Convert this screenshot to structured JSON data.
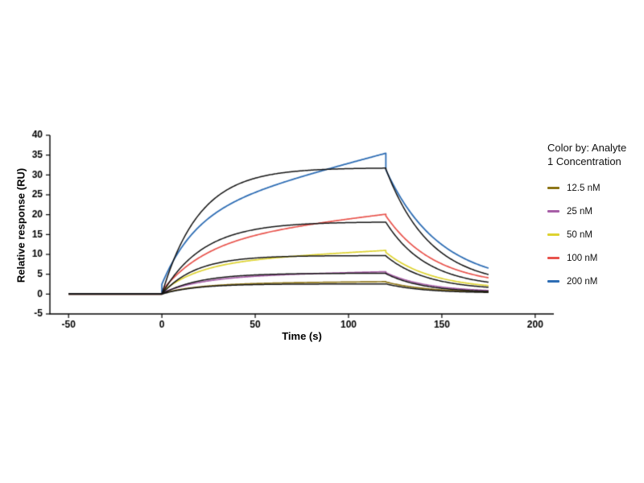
{
  "page": {
    "background": "#ffffff"
  },
  "chart_data": {
    "type": "line",
    "title": "",
    "xlabel": "Time (s)",
    "ylabel": "Relative response (RU)",
    "xlim": [
      -60,
      210
    ],
    "ylim": [
      -5,
      40
    ],
    "xticks": [
      -50,
      0,
      50,
      100,
      150,
      200
    ],
    "yticks": [
      -5,
      0,
      5,
      10,
      15,
      20,
      25,
      30,
      35,
      40
    ],
    "grid": false,
    "axis_color": "#000000",
    "fit_color": "#141414",
    "legend": {
      "title_lines": [
        "Color by: Analyte",
        "1 Concentration"
      ],
      "position": "right",
      "items": [
        {
          "label": "12.5 nM",
          "color": "#8e7618"
        },
        {
          "label": "25 nM",
          "color": "#a75fa7"
        },
        {
          "label": "50 nM",
          "color": "#ddd230"
        },
        {
          "label": "100 nM",
          "color": "#e8534c"
        },
        {
          "label": "200 nM",
          "color": "#2e6db4"
        }
      ]
    },
    "phases": {
      "baseline_start": -50,
      "association_start": 0,
      "dissociation_start": 120,
      "end": 175,
      "baseline_ru": 0
    },
    "series": [
      {
        "name": "12.5 nM",
        "role": "data",
        "color": "#8e7618",
        "width": 1.7,
        "assoc": {
          "jump": 0.15,
          "amp": 2.5,
          "k": 0.05,
          "drift": 0.004
        },
        "dissoc": {
          "amp": 2.7,
          "k": 0.045,
          "offset": 0.35
        },
        "peak_ru": 3.1,
        "end_ru": 0.6
      },
      {
        "name": "25 nM",
        "role": "data",
        "color": "#a75fa7",
        "width": 1.7,
        "assoc": {
          "jump": 0.3,
          "amp": 4.1,
          "k": 0.045,
          "drift": 0.0105
        },
        "dissoc": {
          "amp": 4.9,
          "k": 0.045,
          "offset": 0.5
        },
        "peak_ru": 5.6,
        "end_ru": 0.9
      },
      {
        "name": "50 nM",
        "role": "data",
        "color": "#ddd230",
        "width": 1.7,
        "assoc": {
          "jump": 0.5,
          "amp": 7.4,
          "k": 0.05,
          "drift": 0.026
        },
        "dissoc": {
          "amp": 9.4,
          "k": 0.04,
          "offset": 1.1
        },
        "peak_ru": 11.0,
        "end_ru": 2.1
      },
      {
        "name": "100 nM",
        "role": "data",
        "color": "#e8534c",
        "width": 1.7,
        "assoc": {
          "jump": 0.8,
          "amp": 12.8,
          "k": 0.042,
          "drift": 0.055
        },
        "dissoc": {
          "amp": 17.8,
          "k": 0.038,
          "offset": 1.9
        },
        "peak_ru": 20.1,
        "end_ru": 4.1
      },
      {
        "name": "200 nM",
        "role": "data",
        "color": "#2e6db4",
        "width": 1.8,
        "assoc": {
          "jump": 2.5,
          "amp": 18.0,
          "k": 0.055,
          "drift": 0.125
        },
        "dissoc": {
          "amp": 29.0,
          "k": 0.035,
          "offset": 2.3
        },
        "peak_ru": 35.5,
        "end_ru": 6.5
      },
      {
        "name": "12.5 nM fit",
        "role": "fit",
        "color": "#141414",
        "width": 1.5,
        "assoc": {
          "jump": 0,
          "amp": 2.55,
          "k": 0.055,
          "drift": 0
        },
        "dissoc": {
          "amp": 2.3,
          "k": 0.05,
          "offset": 0.28
        },
        "peak_ru": 2.55,
        "end_ru": 0.4
      },
      {
        "name": "25 nM fit",
        "role": "fit",
        "color": "#141414",
        "width": 1.5,
        "assoc": {
          "jump": 0,
          "amp": 5.25,
          "k": 0.05,
          "drift": 0
        },
        "dissoc": {
          "amp": 4.75,
          "k": 0.05,
          "offset": 0.4
        },
        "peak_ru": 5.25,
        "end_ru": 0.7
      },
      {
        "name": "50 nM fit",
        "role": "fit",
        "color": "#141414",
        "width": 1.5,
        "assoc": {
          "jump": 0,
          "amp": 9.7,
          "k": 0.055,
          "drift": 0
        },
        "dissoc": {
          "amp": 8.6,
          "k": 0.045,
          "offset": 1.0
        },
        "peak_ru": 9.7,
        "end_ru": 1.7
      },
      {
        "name": "100 nM fit",
        "role": "fit",
        "color": "#141414",
        "width": 1.5,
        "assoc": {
          "jump": 0,
          "amp": 18.2,
          "k": 0.045,
          "drift": 0
        },
        "dissoc": {
          "amp": 16.5,
          "k": 0.045,
          "offset": 1.6
        },
        "peak_ru": 18.2,
        "end_ru": 3.0
      },
      {
        "name": "200 nM fit",
        "role": "fit",
        "color": "#141414",
        "width": 1.5,
        "assoc": {
          "jump": 0,
          "amp": 31.8,
          "k": 0.05,
          "drift": 0
        },
        "dissoc": {
          "amp": 29.5,
          "k": 0.042,
          "offset": 2.0
        },
        "peak_ru": 31.8,
        "end_ru": 4.9
      }
    ]
  }
}
